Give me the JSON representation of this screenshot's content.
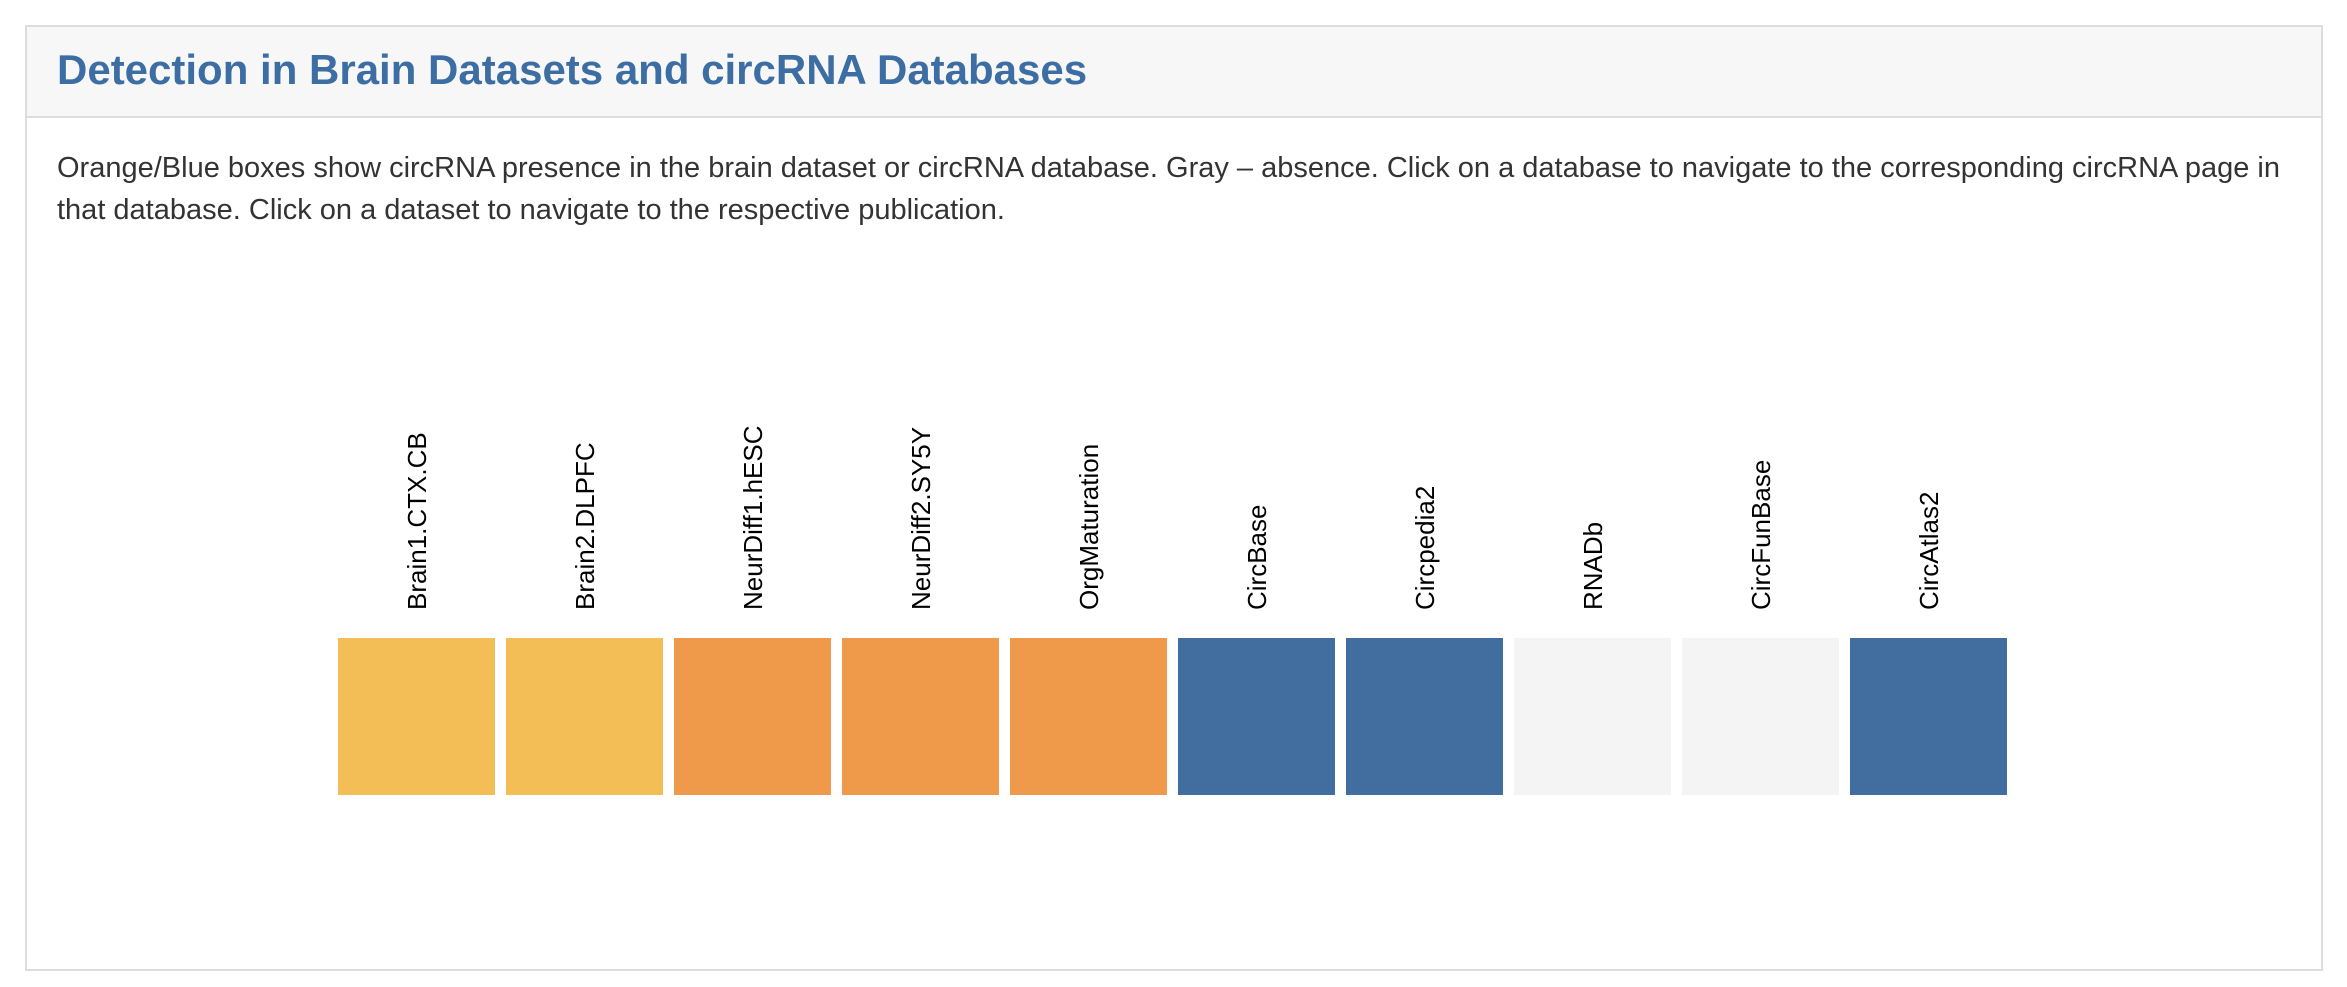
{
  "panel": {
    "title": "Detection in Brain Datasets and circRNA Databases",
    "description": "Orange/Blue boxes show circRNA presence in the brain dataset or circRNA database. Gray – absence. Click on a database to navigate to the corresponding circRNA page in that database. Click on a dataset to navigate to the respective publication."
  },
  "colors": {
    "brain_present": "#f3be55",
    "neurdiff_present": "#ef9a4a",
    "database_present": "#416e9f",
    "absent": "#f4f4f4"
  },
  "tiles": [
    {
      "label": "Brain1.CTX.CB",
      "kind": "dataset",
      "present": true,
      "color": "#f3be55"
    },
    {
      "label": "Brain2.DLPFC",
      "kind": "dataset",
      "present": true,
      "color": "#f3be55"
    },
    {
      "label": "NeurDiff1.hESC",
      "kind": "dataset",
      "present": true,
      "color": "#ef9a4a"
    },
    {
      "label": "NeurDiff2.SY5Y",
      "kind": "dataset",
      "present": true,
      "color": "#ef9a4a"
    },
    {
      "label": "OrgMaturation",
      "kind": "dataset",
      "present": true,
      "color": "#ef9a4a"
    },
    {
      "label": "CircBase",
      "kind": "database",
      "present": true,
      "color": "#416e9f"
    },
    {
      "label": "Circpedia2",
      "kind": "database",
      "present": true,
      "color": "#416e9f"
    },
    {
      "label": "RNADb",
      "kind": "database",
      "present": false,
      "color": "#f4f4f4"
    },
    {
      "label": "CircFunBase",
      "kind": "database",
      "present": false,
      "color": "#f4f4f4"
    },
    {
      "label": "CircAtlas2",
      "kind": "database",
      "present": true,
      "color": "#416e9f"
    }
  ]
}
